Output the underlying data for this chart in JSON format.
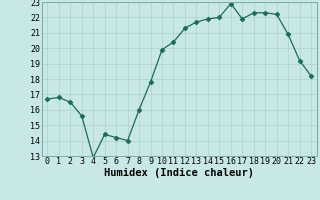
{
  "x": [
    0,
    1,
    2,
    3,
    4,
    5,
    6,
    7,
    8,
    9,
    10,
    11,
    12,
    13,
    14,
    15,
    16,
    17,
    18,
    19,
    20,
    21,
    22,
    23
  ],
  "y": [
    16.7,
    16.8,
    16.5,
    15.6,
    12.9,
    14.4,
    14.2,
    14.0,
    16.0,
    17.8,
    19.9,
    20.4,
    21.3,
    21.7,
    21.9,
    22.0,
    22.9,
    21.9,
    22.3,
    22.3,
    22.2,
    20.9,
    19.2,
    18.2
  ],
  "xlabel": "Humidex (Indice chaleur)",
  "xlim": [
    -0.5,
    23.5
  ],
  "ylim": [
    13,
    23
  ],
  "yticks": [
    13,
    14,
    15,
    16,
    17,
    18,
    19,
    20,
    21,
    22,
    23
  ],
  "xticks": [
    0,
    1,
    2,
    3,
    4,
    5,
    6,
    7,
    8,
    9,
    10,
    11,
    12,
    13,
    14,
    15,
    16,
    17,
    18,
    19,
    20,
    21,
    22,
    23
  ],
  "line_color": "#1a6b5a",
  "marker_size": 2.5,
  "bg_color": "#c8e8e8",
  "grid_color": "#aed0d0",
  "label_fontsize": 7.5,
  "tick_fontsize": 6.0
}
